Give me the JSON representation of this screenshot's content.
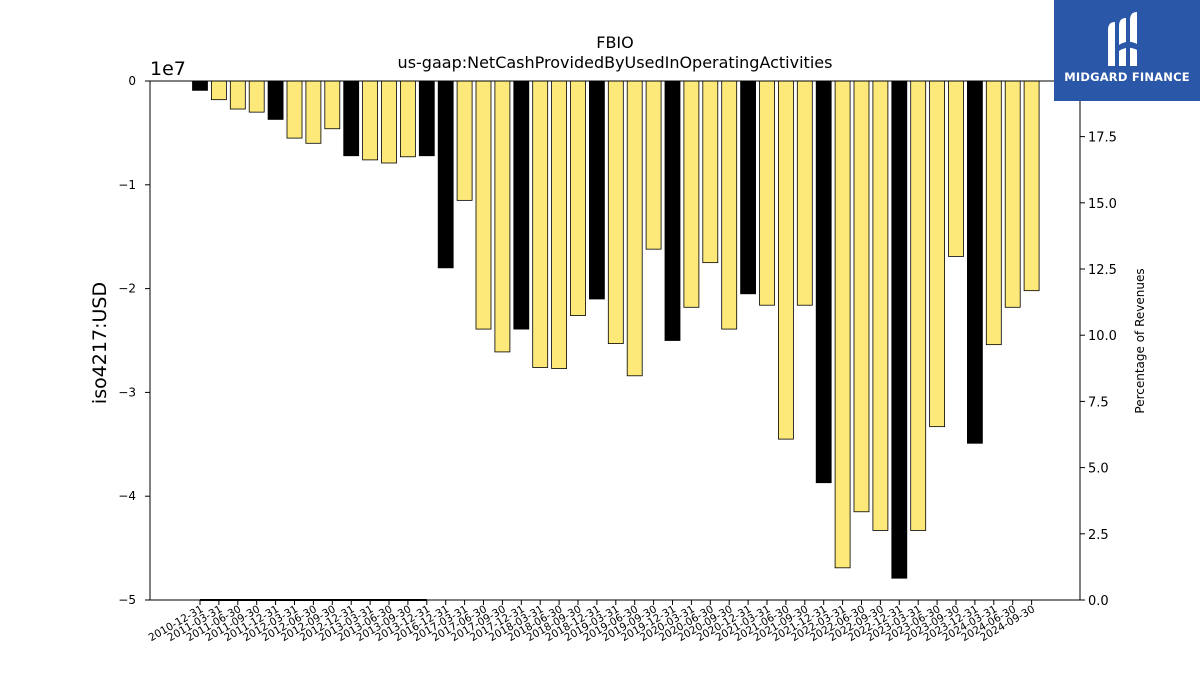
{
  "chart_data": {
    "type": "bar",
    "title": "FBIO",
    "subtitle": "us-gaap:NetCashProvidedByUsedInOperatingActivities",
    "ylabel": "iso4217:USD",
    "y_offset_label": "1e7",
    "ylim": [
      -5,
      0
    ],
    "y_ticks": [
      0,
      -1,
      -2,
      -3,
      -4,
      -5
    ],
    "y_tick_labels": [
      "0",
      "−1",
      "−2",
      "−3",
      "−4",
      "−5"
    ],
    "y2label": "Percentage of Revenues",
    "y2lim": [
      0,
      19.6
    ],
    "y2_ticks": [
      0,
      2.5,
      5,
      7.5,
      10,
      12.5,
      15,
      17.5
    ],
    "y2_tick_labels": [
      "0.0",
      "2.5",
      "5.0",
      "7.5",
      "10.0",
      "12.5",
      "15.0",
      "17.5"
    ],
    "grid": false,
    "legend": "none",
    "colors": {
      "annual": "#000000",
      "quarter": "#fce97a",
      "edge": "#000000",
      "logo_bg": "#2a57a8"
    },
    "categories": [
      "2010-12-31",
      "2011-03-31",
      "2011-06-30",
      "2011-09-30",
      "2011-12-31",
      "2012-03-31",
      "2012-06-30",
      "2012-09-30",
      "2012-12-31",
      "2013-03-31",
      "2013-06-30",
      "2013-09-30",
      "2013-12-31",
      "2016-12-31",
      "2017-03-31",
      "2017-06-30",
      "2017-09-30",
      "2017-12-31",
      "2018-03-31",
      "2018-06-30",
      "2018-09-30",
      "2018-12-31",
      "2019-03-31",
      "2019-06-30",
      "2019-09-30",
      "2019-12-31",
      "2020-03-31",
      "2020-06-30",
      "2020-09-30",
      "2020-12-31",
      "2021-03-31",
      "2021-06-30",
      "2021-09-30",
      "2021-12-31",
      "2022-03-31",
      "2022-06-30",
      "2022-09-30",
      "2022-12-31",
      "2023-03-31",
      "2023-06-30",
      "2023-09-30",
      "2023-12-31",
      "2024-03-31",
      "2024-06-30",
      "2024-09-30"
    ],
    "values": [
      -0.09,
      -0.18,
      -0.27,
      -0.3,
      -0.37,
      -0.55,
      -0.6,
      -0.46,
      -0.72,
      -0.76,
      -0.79,
      -0.73,
      -0.72,
      -1.8,
      -1.15,
      -2.39,
      -2.61,
      -2.39,
      -2.76,
      -2.77,
      -2.26,
      -2.1,
      -2.53,
      -2.84,
      -1.62,
      -2.5,
      -2.18,
      -1.75,
      -2.39,
      -2.05,
      -2.16,
      -3.45,
      -2.16,
      -3.87,
      -4.69,
      -4.15,
      -4.33,
      -4.79,
      -4.33,
      -3.33,
      -1.69,
      -3.49,
      -2.54,
      -2.18,
      -2.02
    ],
    "annual": [
      true,
      false,
      false,
      false,
      true,
      false,
      false,
      false,
      true,
      false,
      false,
      false,
      true,
      true,
      false,
      false,
      false,
      true,
      false,
      false,
      false,
      true,
      false,
      false,
      false,
      true,
      false,
      false,
      false,
      true,
      false,
      false,
      false,
      true,
      false,
      false,
      false,
      true,
      false,
      false,
      false,
      true,
      false,
      false,
      false
    ],
    "percentage_series": {
      "name": "",
      "values": [
        0,
        0,
        0,
        0,
        0,
        0,
        0,
        0,
        0,
        0,
        0,
        0,
        0
      ]
    }
  },
  "logo": {
    "text": "MIDGARD FINANCE"
  }
}
